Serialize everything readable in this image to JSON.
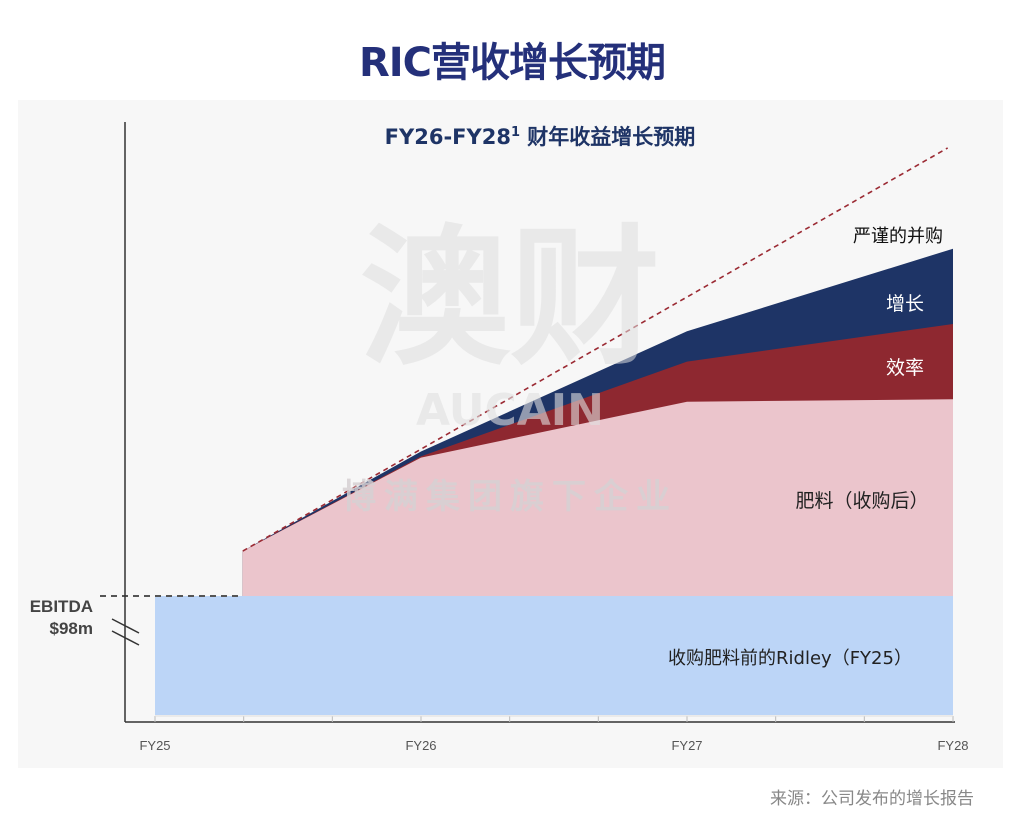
{
  "title": "RIC营收增长预期",
  "source": "来源：公司发布的增长报告",
  "watermark": {
    "main": "澳财",
    "latin": "AUCAIN",
    "sub": "博满集团旗下企业"
  },
  "chart_data": {
    "type": "area",
    "title": "FY26-FY28",
    "title_sup": "1",
    "title_suffix": " 财年收益增长预期",
    "categories": [
      "FY25",
      "FY26",
      "FY27",
      "FY28"
    ],
    "xlim": [
      25,
      28
    ],
    "ylim": [
      0,
      480
    ],
    "ylabel_line1": "EBITDA",
    "ylabel_line2": "$98m",
    "baseline_value": 98,
    "series": [
      {
        "name": "收购肥料前的Ridley（FY25）",
        "color": "#bcd5f7",
        "label_color": "#222222",
        "x": [
          25,
          28
        ],
        "top": [
          98,
          98
        ]
      },
      {
        "name": "肥料（收购后）",
        "color": "#ebc5cc",
        "label_color": "#222222",
        "x": [
          25.33,
          26,
          27,
          28
        ],
        "top": [
          135,
          212,
          258,
          260
        ]
      },
      {
        "name": "效率",
        "color": "#8e2830",
        "label_color": "#ffffff",
        "x": [
          25.33,
          26,
          27,
          28
        ],
        "top": [
          135,
          213,
          291,
          322
        ]
      },
      {
        "name": "增长",
        "color": "#1e3466",
        "label_color": "#ffffff",
        "x": [
          25.33,
          26,
          27,
          28
        ],
        "top": [
          135,
          217,
          316,
          384
        ]
      },
      {
        "name": "严谨的并购",
        "color": "none",
        "label_color": "#111111",
        "x": [
          25.33,
          27.98
        ],
        "top": [
          135,
          467
        ],
        "style": "dashed",
        "line_color": "#9b2a33"
      }
    ]
  }
}
